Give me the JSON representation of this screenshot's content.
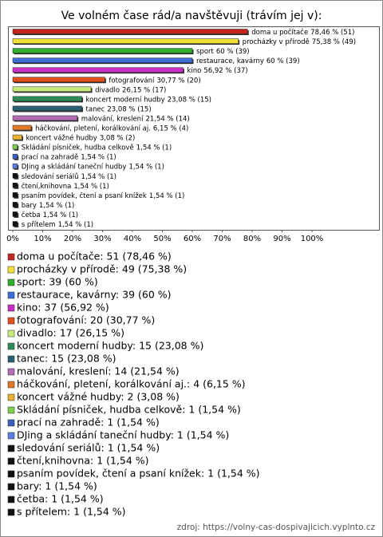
{
  "chart_data": {
    "type": "bar",
    "orientation": "horizontal",
    "title": "Ve volném čase rád/a navštěvuji (trávím jej v):",
    "categories": [
      "doma u počítače",
      "procházky v přírodě",
      "sport",
      "restaurace, kavárny",
      "kino",
      "fotografování",
      "divadlo",
      "koncert moderní hudby",
      "tanec",
      "malování, kreslení",
      "háčkování, pletení, korálkování aj.",
      "koncert vážné hudby",
      "Skládání písniček, hudba celkově",
      "prací na zahradě",
      "DJing a skládání taneční hudby",
      "sledování seriálů",
      "čtení,knihovna",
      "psaním povídek, čtení a psaní knížek",
      "bary",
      "četba",
      "s přítelem"
    ],
    "values": [
      78.46,
      75.38,
      60,
      60,
      56.92,
      30.77,
      26.15,
      23.08,
      23.08,
      21.54,
      6.15,
      3.08,
      1.54,
      1.54,
      1.54,
      1.54,
      1.54,
      1.54,
      1.54,
      1.54,
      1.54
    ],
    "value_labels": [
      "78,46 % (51)",
      "75,38 % (49)",
      "60 % (39)",
      "60 % (39)",
      "56,92 % (37)",
      "30,77 % (20)",
      "26,15 % (17)",
      "23,08 % (15)",
      "23,08 % (15)",
      "21,54 % (14)",
      "6,15 % (4)",
      "3,08 % (2)",
      "1,54 % (1)",
      "1,54 % (1)",
      "1,54 % (1)",
      "1,54 % (1)",
      "1,54 % (1)",
      "1,54 % (1)",
      "1,54 % (1)",
      "1,54 % (1)",
      "1,54 % (1)"
    ],
    "colors": [
      "#c3261e",
      "#f3e13a",
      "#2fae2f",
      "#3c6fd6",
      "#c630c6",
      "#e0501e",
      "#c6ec7c",
      "#2e8b57",
      "#2a6272",
      "#b46cb4",
      "#e07a2a",
      "#e8b230",
      "#7ed04c",
      "#3a5fc0",
      "#5b7ce0",
      "#111111",
      "#111111",
      "#111111",
      "#111111",
      "#111111",
      "#111111"
    ],
    "legend_labels": [
      "doma u počítače: 51 (78,46 %)",
      "procházky v přírodě: 49 (75,38 %)",
      "sport: 39 (60 %)",
      "restaurace, kavárny: 39 (60 %)",
      "kino: 37 (56,92 %)",
      "fotografování: 20 (30,77 %)",
      "divadlo: 17 (26,15 %)",
      "koncert moderní hudby: 15 (23,08 %)",
      "tanec: 15 (23,08 %)",
      "malování, kreslení: 14 (21,54 %)",
      "háčkování, pletení, korálkování aj.: 4 (6,15 %)",
      "koncert vážné hudby: 2 (3,08 %)",
      "Skládání písniček, hudba celkově: 1 (1,54 %)",
      "prací na zahradě: 1 (1,54 %)",
      "DJing a skládání taneční hudby: 1 (1,54 %)",
      "sledování seriálů: 1 (1,54 %)",
      "čtení,knihovna: 1 (1,54 %)",
      "psaním povídek, čtení a psaní knížek: 1 (1,54 %)",
      "bary: 1 (1,54 %)",
      "četba: 1 (1,54 %)",
      "s přítelem: 1 (1,54 %)"
    ],
    "xlim": [
      0,
      100
    ],
    "xticks": [
      {
        "value": 0,
        "label": "0%"
      },
      {
        "value": 10,
        "label": "10%"
      },
      {
        "value": 20,
        "label": "20%"
      },
      {
        "value": 30,
        "label": "30%"
      },
      {
        "value": 40,
        "label": "40%"
      },
      {
        "value": 50,
        "label": "50%"
      },
      {
        "value": 60,
        "label": "60%"
      },
      {
        "value": 70,
        "label": "70%"
      },
      {
        "value": 80,
        "label": "80%"
      },
      {
        "value": 90,
        "label": "90%"
      },
      {
        "value": 100,
        "label": "100%"
      }
    ],
    "source": "zdroj: https://volny-cas-dospivajicich.vyplnto.cz"
  }
}
